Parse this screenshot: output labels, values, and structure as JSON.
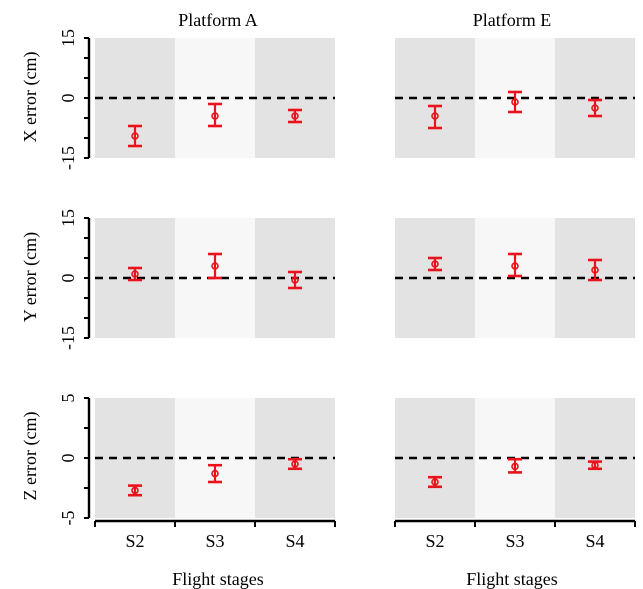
{
  "chart_data": {
    "type": "errorbar-grid",
    "columns": [
      "Platform A",
      "Platform E"
    ],
    "stages": [
      "S2",
      "S3",
      "S4"
    ],
    "xlabel": "Flight stages",
    "rows": [
      {
        "ylabel": "X error (cm)",
        "ylim": [
          -15,
          15
        ],
        "ticks": [
          "15",
          "0",
          "-15"
        ],
        "tick_values": [
          15,
          0,
          -15
        ],
        "minor_step": 5,
        "panels": [
          {
            "platform": "Platform A",
            "points": [
              {
                "stage": "S2",
                "mean": -9.5,
                "low": -12.0,
                "high": -7.0
              },
              {
                "stage": "S3",
                "mean": -4.5,
                "low": -7.0,
                "high": -1.5
              },
              {
                "stage": "S4",
                "mean": -4.5,
                "low": -6.0,
                "high": -3.0
              }
            ]
          },
          {
            "platform": "Platform E",
            "points": [
              {
                "stage": "S2",
                "mean": -4.5,
                "low": -7.5,
                "high": -2.0
              },
              {
                "stage": "S3",
                "mean": -1.0,
                "low": -3.5,
                "high": 1.5
              },
              {
                "stage": "S4",
                "mean": -2.5,
                "low": -4.5,
                "high": -0.5
              }
            ]
          }
        ]
      },
      {
        "ylabel": "Y error (cm)",
        "ylim": [
          -15,
          15
        ],
        "ticks": [
          "15",
          "0",
          "-15"
        ],
        "tick_values": [
          15,
          0,
          -15
        ],
        "minor_step": 5,
        "panels": [
          {
            "platform": "Platform A",
            "points": [
              {
                "stage": "S2",
                "mean": 1.0,
                "low": -0.5,
                "high": 2.5
              },
              {
                "stage": "S3",
                "mean": 3.0,
                "low": 0.0,
                "high": 6.0
              },
              {
                "stage": "S4",
                "mean": -0.5,
                "low": -2.5,
                "high": 1.5
              }
            ]
          },
          {
            "platform": "Platform E",
            "points": [
              {
                "stage": "S2",
                "mean": 3.5,
                "low": 2.0,
                "high": 5.0
              },
              {
                "stage": "S3",
                "mean": 3.0,
                "low": 0.5,
                "high": 6.0
              },
              {
                "stage": "S4",
                "mean": 2.0,
                "low": -0.5,
                "high": 4.5
              }
            ]
          }
        ]
      },
      {
        "ylabel": "Z error (cm)",
        "ylim": [
          -5,
          5
        ],
        "ticks": [
          "5",
          "0",
          "-5"
        ],
        "tick_values": [
          5,
          0,
          -5
        ],
        "minor_step": 2.5,
        "panels": [
          {
            "platform": "Platform A",
            "points": [
              {
                "stage": "S2",
                "mean": -2.7,
                "low": -3.1,
                "high": -2.3
              },
              {
                "stage": "S3",
                "mean": -1.3,
                "low": -2.0,
                "high": -0.6
              },
              {
                "stage": "S4",
                "mean": -0.5,
                "low": -0.9,
                "high": -0.1
              }
            ]
          },
          {
            "platform": "Platform E",
            "points": [
              {
                "stage": "S2",
                "mean": -2.0,
                "low": -2.4,
                "high": -1.6
              },
              {
                "stage": "S3",
                "mean": -0.7,
                "low": -1.2,
                "high": -0.1
              },
              {
                "stage": "S4",
                "mean": -0.6,
                "low": -0.9,
                "high": -0.3
              }
            ]
          }
        ]
      }
    ],
    "reference_line": 0,
    "colors": {
      "marker": "#e8141c",
      "reference_line": "#000000",
      "band_dark": "#e3e3e3",
      "band_light": "#f7f7f7"
    }
  }
}
